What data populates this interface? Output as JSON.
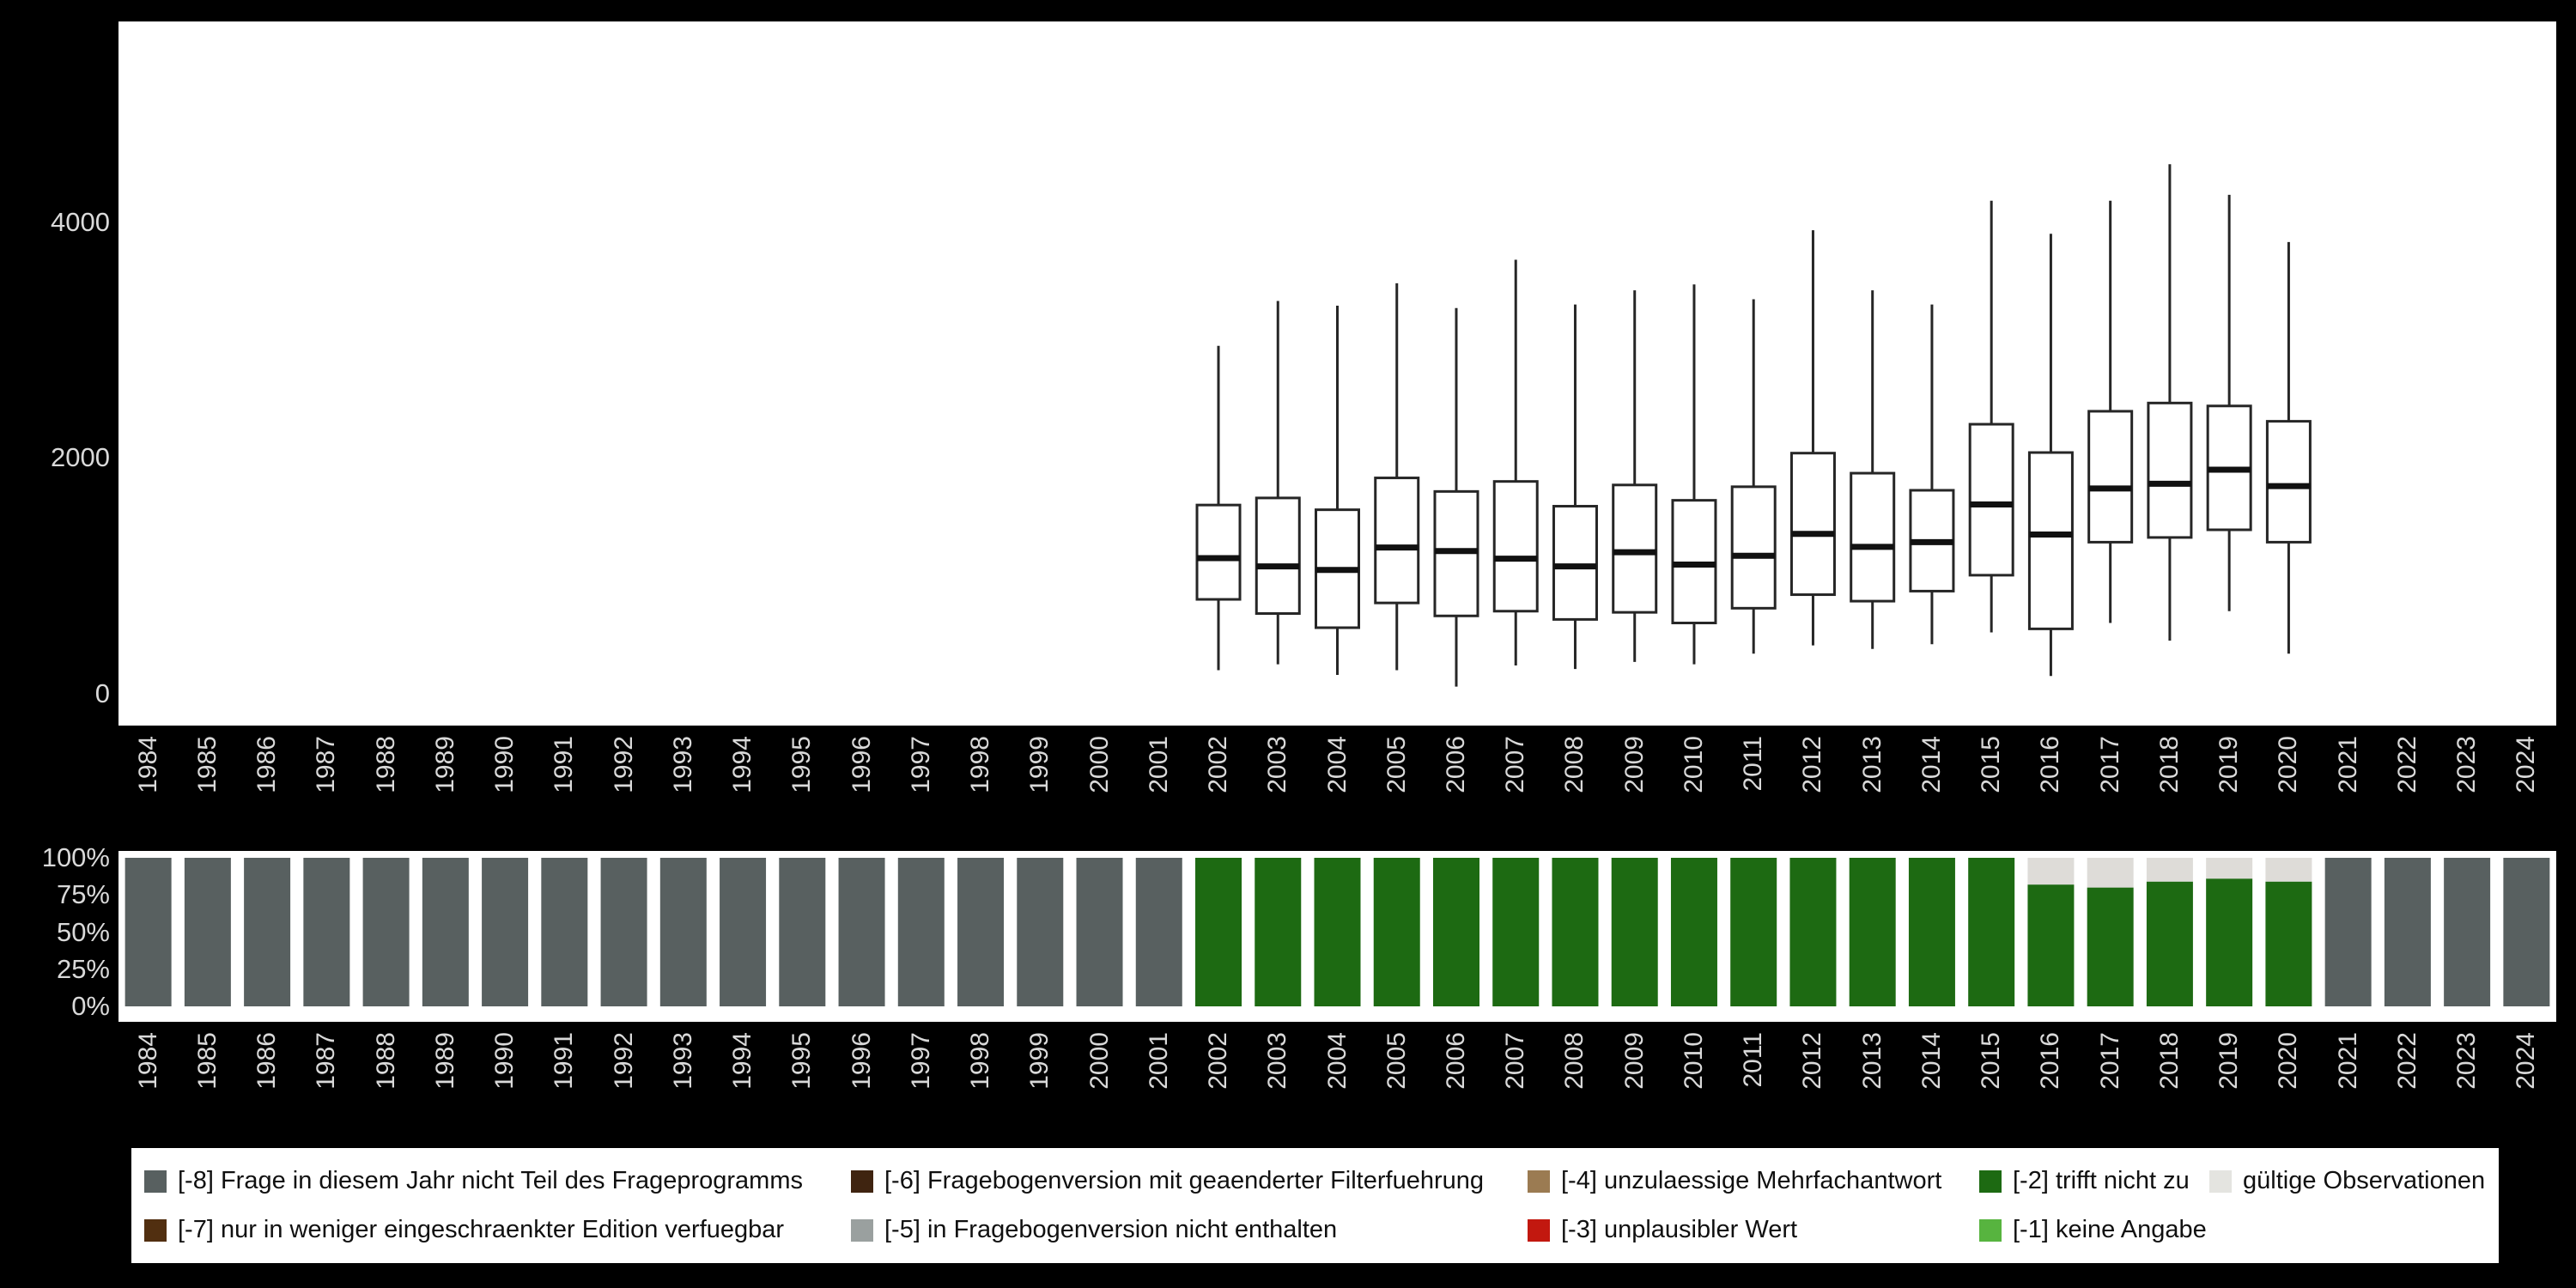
{
  "colors": {
    "background": "#000000",
    "panel": "#ffffff",
    "axis_text": "#d9d9d9",
    "box_stroke": "#262626",
    "median_stroke": "#111111"
  },
  "chart_data": [
    {
      "type": "boxplot",
      "title": "",
      "xlabel": "",
      "ylabel": "",
      "legend_position": "none",
      "grid": false,
      "ylim": [
        -270,
        5700
      ],
      "y_ticks": [
        {
          "label": "4000",
          "value": 4000
        },
        {
          "label": "2000",
          "value": 2000
        },
        {
          "label": "0",
          "value": 0
        }
      ],
      "categories": [
        "1984",
        "1985",
        "1986",
        "1987",
        "1988",
        "1989",
        "1990",
        "1991",
        "1992",
        "1993",
        "1994",
        "1995",
        "1996",
        "1997",
        "1998",
        "1999",
        "2000",
        "2001",
        "2002",
        "2003",
        "2004",
        "2005",
        "2006",
        "2007",
        "2008",
        "2009",
        "2010",
        "2011",
        "2012",
        "2013",
        "2014",
        "2015",
        "2016",
        "2017",
        "2018",
        "2019",
        "2020",
        "2021",
        "2022",
        "2023",
        "2024"
      ],
      "boxes": [
        {
          "year": "2002",
          "low": 200,
          "q1": 800,
          "median": 1150,
          "q3": 1600,
          "high": 2950
        },
        {
          "year": "2003",
          "low": 250,
          "q1": 680,
          "median": 1080,
          "q3": 1660,
          "high": 3330
        },
        {
          "year": "2004",
          "low": 160,
          "q1": 560,
          "median": 1050,
          "q3": 1560,
          "high": 3290
        },
        {
          "year": "2005",
          "low": 200,
          "q1": 770,
          "median": 1240,
          "q3": 1830,
          "high": 3480
        },
        {
          "year": "2006",
          "low": 60,
          "q1": 660,
          "median": 1210,
          "q3": 1715,
          "high": 3270
        },
        {
          "year": "2007",
          "low": 240,
          "q1": 700,
          "median": 1145,
          "q3": 1800,
          "high": 3680
        },
        {
          "year": "2008",
          "low": 210,
          "q1": 630,
          "median": 1080,
          "q3": 1590,
          "high": 3300
        },
        {
          "year": "2009",
          "low": 270,
          "q1": 690,
          "median": 1200,
          "q3": 1770,
          "high": 3420
        },
        {
          "year": "2010",
          "low": 250,
          "q1": 600,
          "median": 1095,
          "q3": 1640,
          "high": 3470
        },
        {
          "year": "2011",
          "low": 340,
          "q1": 725,
          "median": 1170,
          "q3": 1755,
          "high": 3345
        },
        {
          "year": "2012",
          "low": 410,
          "q1": 840,
          "median": 1355,
          "q3": 2040,
          "high": 3930
        },
        {
          "year": "2013",
          "low": 380,
          "q1": 785,
          "median": 1245,
          "q3": 1870,
          "high": 3420
        },
        {
          "year": "2014",
          "low": 420,
          "q1": 870,
          "median": 1285,
          "q3": 1725,
          "high": 3300
        },
        {
          "year": "2015",
          "low": 520,
          "q1": 1005,
          "median": 1605,
          "q3": 2285,
          "high": 4180
        },
        {
          "year": "2016",
          "low": 150,
          "q1": 550,
          "median": 1350,
          "q3": 2045,
          "high": 3900
        },
        {
          "year": "2017",
          "low": 600,
          "q1": 1285,
          "median": 1740,
          "q3": 2395,
          "high": 4180
        },
        {
          "year": "2018",
          "low": 450,
          "q1": 1325,
          "median": 1780,
          "q3": 2465,
          "high": 4490
        },
        {
          "year": "2019",
          "low": 700,
          "q1": 1390,
          "median": 1900,
          "q3": 2440,
          "high": 4230
        },
        {
          "year": "2020",
          "low": 340,
          "q1": 1285,
          "median": 1760,
          "q3": 2310,
          "high": 3830
        }
      ]
    },
    {
      "type": "bar",
      "stacked": true,
      "unit": "percent",
      "title": "",
      "grid": false,
      "ylim": [
        0,
        100
      ],
      "y_ticks": [
        {
          "label": "100%",
          "value": 100
        },
        {
          "label": "75%",
          "value": 75
        },
        {
          "label": "50%",
          "value": 50
        },
        {
          "label": "25%",
          "value": 25
        },
        {
          "label": "0%",
          "value": 0
        }
      ],
      "categories": [
        "1984",
        "1985",
        "1986",
        "1987",
        "1988",
        "1989",
        "1990",
        "1991",
        "1992",
        "1993",
        "1994",
        "1995",
        "1996",
        "1997",
        "1998",
        "1999",
        "2000",
        "2001",
        "2002",
        "2003",
        "2004",
        "2005",
        "2006",
        "2007",
        "2008",
        "2009",
        "2010",
        "2011",
        "2012",
        "2013",
        "2014",
        "2015",
        "2016",
        "2017",
        "2018",
        "2019",
        "2020",
        "2021",
        "2022",
        "2023",
        "2024"
      ],
      "series": [
        {
          "name": "[-8] Frage in diesem Jahr nicht Teil des Frageprogramms",
          "code": "-8",
          "color": "#586060",
          "values": [
            100,
            100,
            100,
            100,
            100,
            100,
            100,
            100,
            100,
            100,
            100,
            100,
            100,
            100,
            100,
            100,
            100,
            100,
            0,
            0,
            0,
            0,
            0,
            0,
            0,
            0,
            0,
            0,
            0,
            0,
            0,
            0,
            0,
            0,
            0,
            0,
            0,
            100,
            100,
            100,
            100
          ]
        },
        {
          "name": "[-2] trifft nicht zu",
          "code": "-2",
          "color": "#1d6a12",
          "values": [
            0,
            0,
            0,
            0,
            0,
            0,
            0,
            0,
            0,
            0,
            0,
            0,
            0,
            0,
            0,
            0,
            0,
            0,
            100,
            100,
            100,
            100,
            100,
            100,
            100,
            100,
            100,
            100,
            100,
            100,
            100,
            100,
            82,
            80,
            84,
            86,
            84,
            0,
            0,
            0,
            0
          ]
        },
        {
          "name": "gültige Observationen",
          "code": "valid",
          "color": "#dedcd8",
          "values": [
            0,
            0,
            0,
            0,
            0,
            0,
            0,
            0,
            0,
            0,
            0,
            0,
            0,
            0,
            0,
            0,
            0,
            0,
            0,
            0,
            0,
            0,
            0,
            0,
            0,
            0,
            0,
            0,
            0,
            0,
            0,
            0,
            18,
            20,
            16,
            14,
            16,
            0,
            0,
            0,
            0
          ]
        }
      ]
    }
  ],
  "legend": {
    "items": [
      {
        "label": "[-8] Frage in diesem Jahr nicht Teil des Frageprogramms",
        "color": "#586060"
      },
      {
        "label": "[-7] nur in weniger eingeschraenkter Edition verfuegbar",
        "color": "#512f10"
      },
      {
        "label": "[-6] Fragebogenversion mit geaenderter Filterfuehrung",
        "color": "#3f2410"
      },
      {
        "label": "[-5] in Fragebogenversion nicht enthalten",
        "color": "#9aa09f"
      },
      {
        "label": "[-4] unzulaessige Mehrfachantwort",
        "color": "#9b7b52"
      },
      {
        "label": "[-3] unplausibler Wert",
        "color": "#c2180f"
      },
      {
        "label": "[-2] trifft nicht zu",
        "color": "#1d6a12"
      },
      {
        "label": "[-1] keine Angabe",
        "color": "#57b43f"
      },
      {
        "label": "gültige Observationen",
        "color": "#e4e4e0"
      }
    ]
  }
}
